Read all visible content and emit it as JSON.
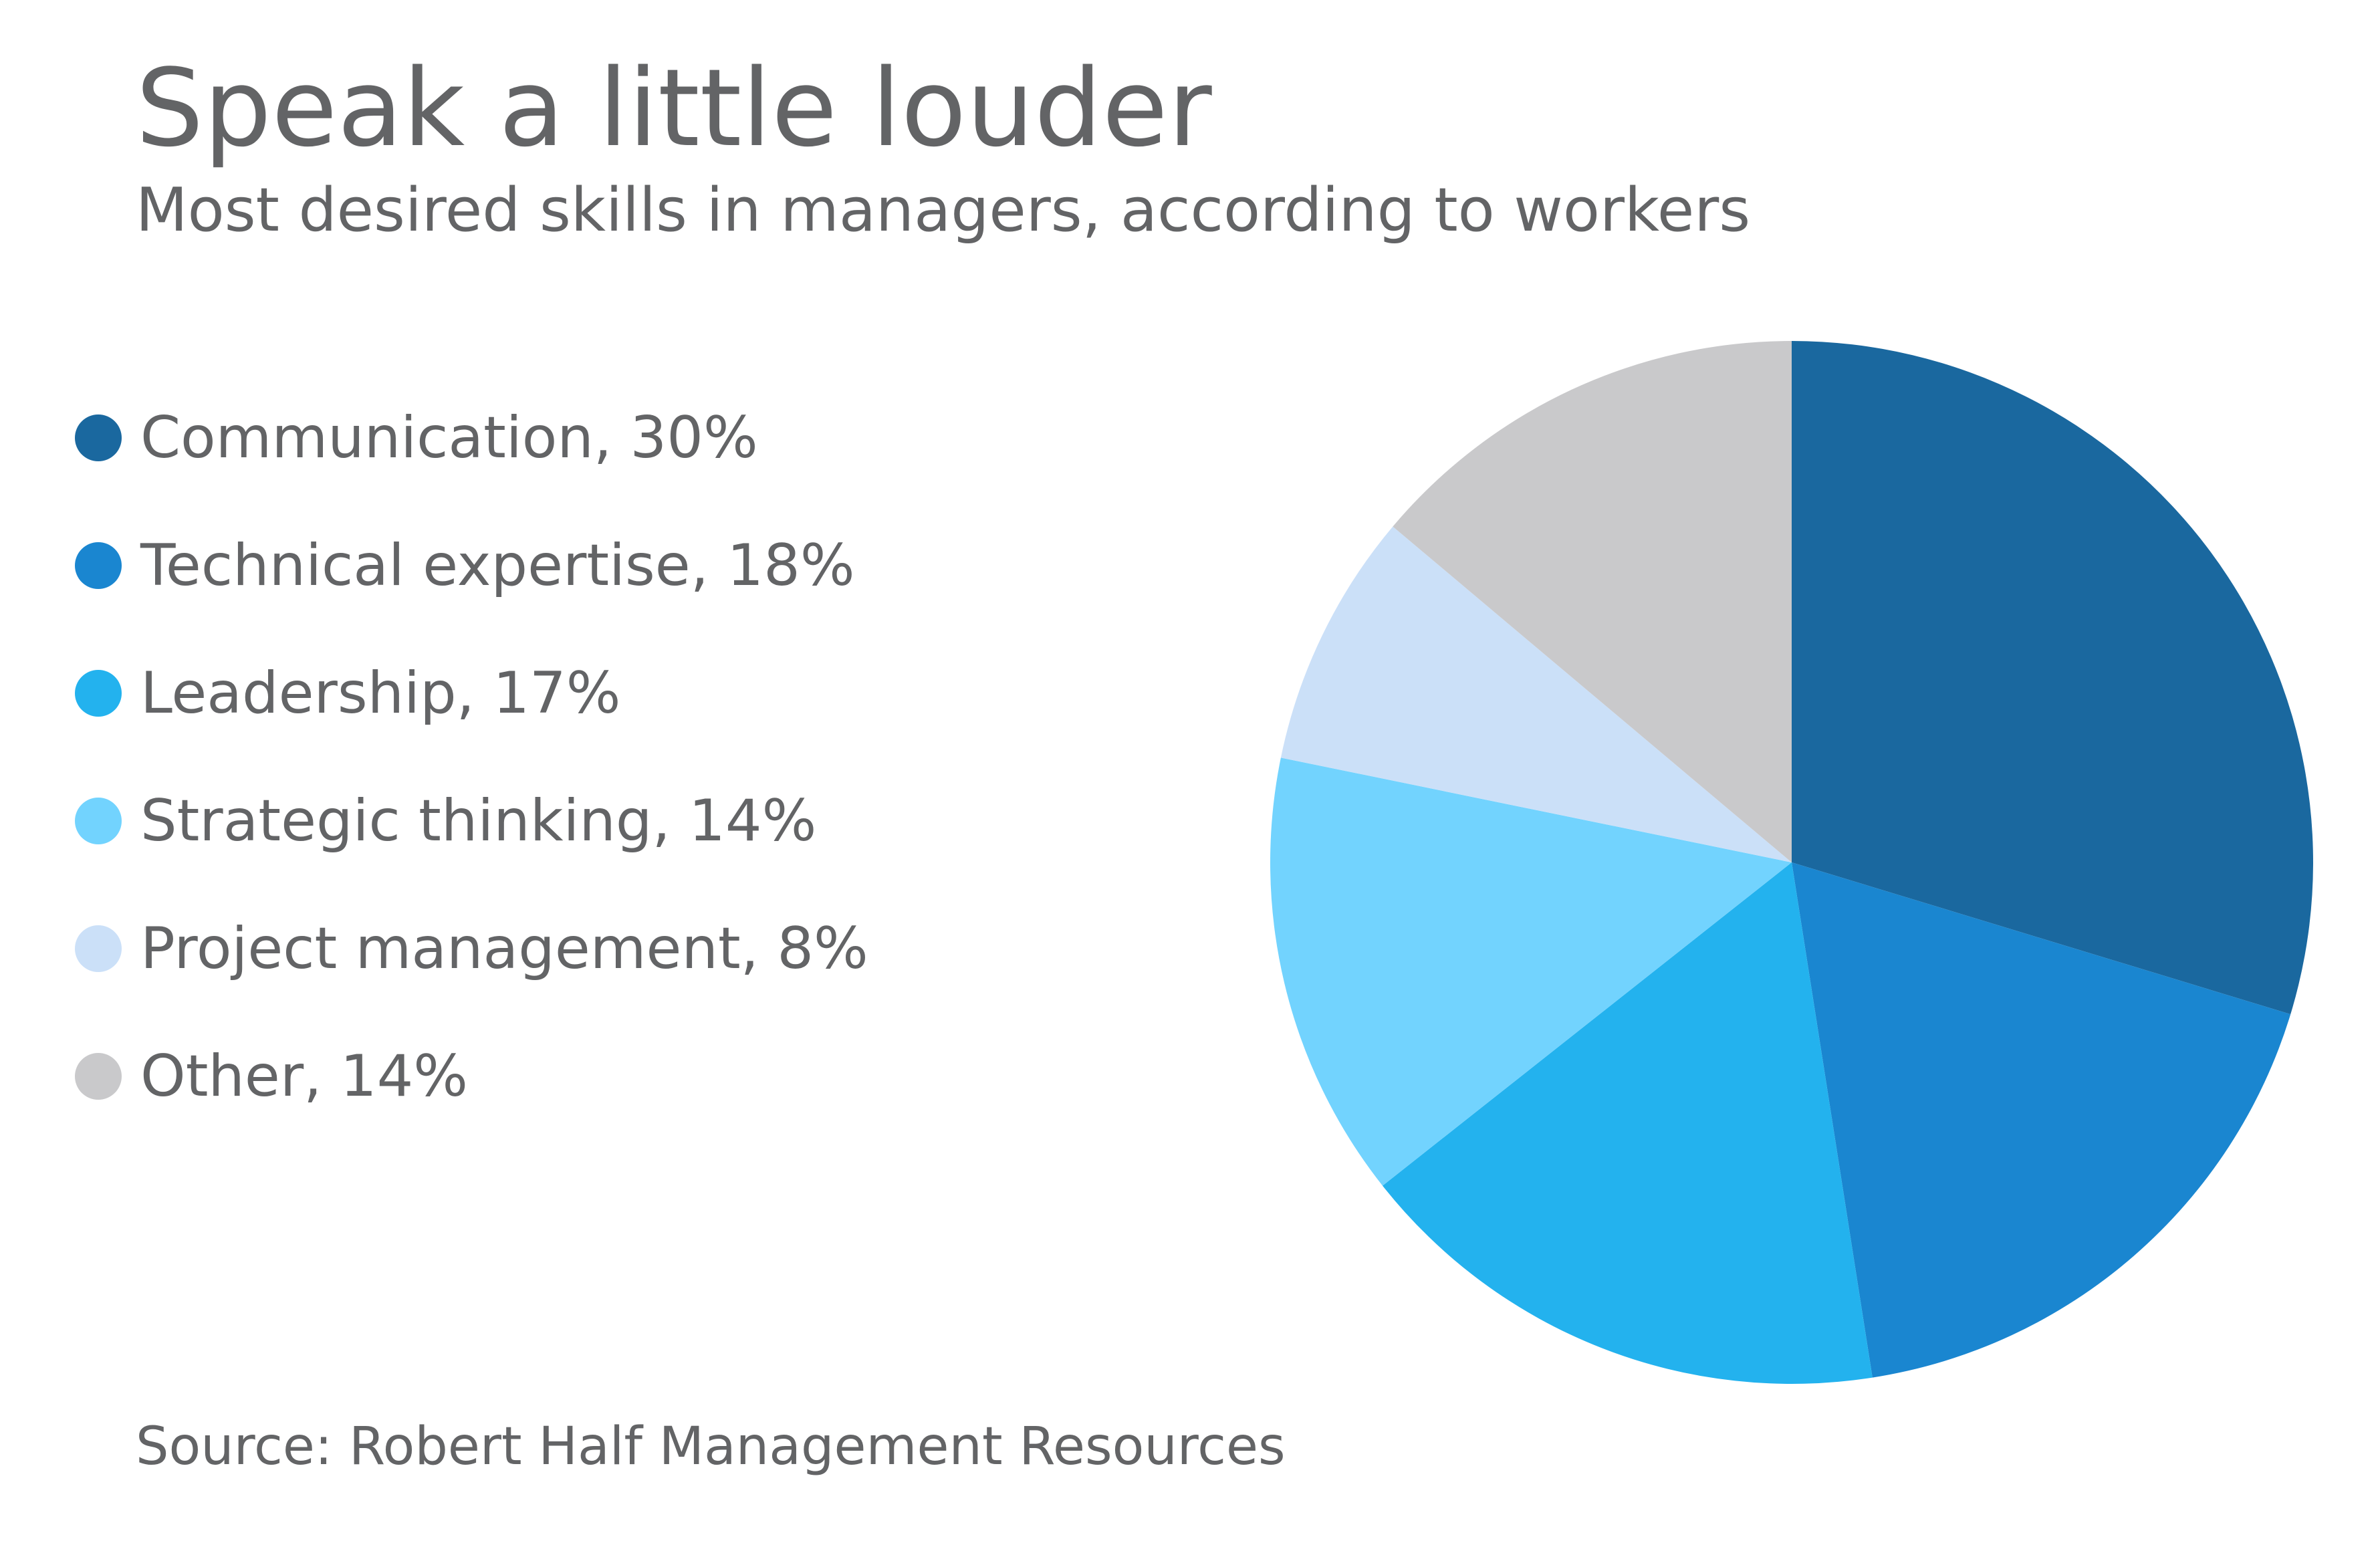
{
  "header": {
    "title": "Speak a little louder",
    "subtitle": "Most desired skills in managers, according to workers"
  },
  "legend": [
    {
      "label": "Communication, 30%",
      "color": "#1a689f"
    },
    {
      "label": "Technical expertise, 18%",
      "color": "#1a86d0"
    },
    {
      "label": "Leadership, 17%",
      "color": "#23b2ee"
    },
    {
      "label": "Strategic thinking, 14%",
      "color": "#72d3fe"
    },
    {
      "label": "Project management, 8%",
      "color": "#cbe0f8"
    },
    {
      "label": "Other, 14%",
      "color": "#c9c9cb"
    }
  ],
  "chart_data": {
    "type": "pie",
    "title": "Speak a little louder",
    "subtitle": "Most desired skills in managers, according to workers",
    "slices": [
      {
        "label": "Communication",
        "value": 30,
        "color": "#1a689f"
      },
      {
        "label": "Technical expertise",
        "value": 18,
        "color": "#1a86d0"
      },
      {
        "label": "Leadership",
        "value": 17,
        "color": "#23b2ee"
      },
      {
        "label": "Strategic thinking",
        "value": 14,
        "color": "#72d3fe"
      },
      {
        "label": "Project management",
        "value": 8,
        "color": "#cbe0f8"
      },
      {
        "label": "Other",
        "value": 14,
        "color": "#c9c9cb"
      }
    ],
    "unit": "%",
    "start_angle": "12 o'clock",
    "direction": "clockwise",
    "legend_placement": "left"
  },
  "footer": {
    "source": "Source: Robert Half Management Resources"
  }
}
